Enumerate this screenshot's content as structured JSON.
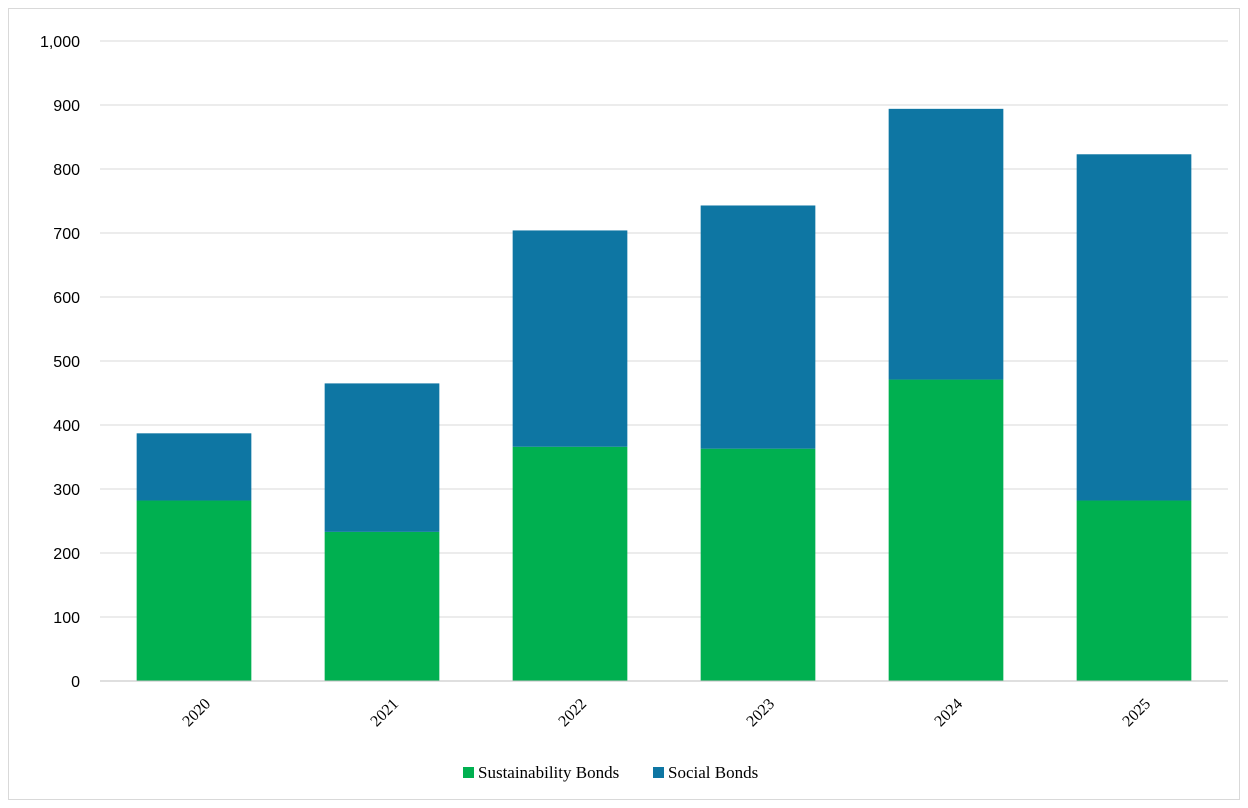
{
  "chart_data": {
    "type": "bar",
    "stacked": true,
    "categories": [
      "2020",
      "2021",
      "2022",
      "2023",
      "2024",
      "2025"
    ],
    "series": [
      {
        "name": "Sustainability Bonds",
        "color": "#00b050",
        "values": [
          282,
          233,
          366,
          363,
          471,
          282
        ]
      },
      {
        "name": "Social Bonds",
        "color": "#0e76a3",
        "values": [
          105,
          232,
          338,
          380,
          423,
          541
        ]
      }
    ],
    "ylim": [
      0,
      1000
    ],
    "yticks": [
      0,
      100,
      200,
      300,
      400,
      500,
      600,
      700,
      800,
      900,
      1000
    ],
    "ytick_labels": [
      "0",
      "100",
      "200",
      "300",
      "400",
      "500",
      "600",
      "700",
      "800",
      "900",
      "1,000"
    ],
    "title": "",
    "xlabel": "",
    "ylabel": "",
    "grid": true,
    "legend_position": "bottom"
  }
}
